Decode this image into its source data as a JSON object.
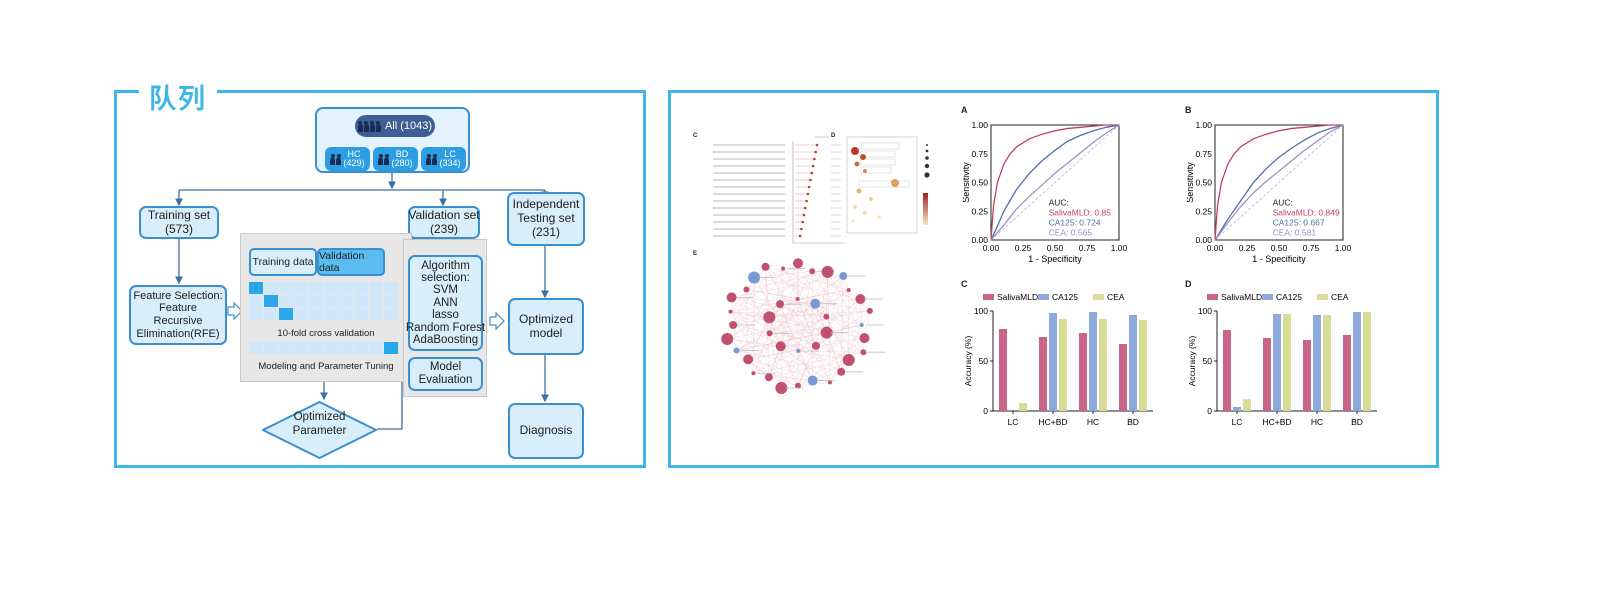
{
  "cohort_panel": {
    "title": "队列",
    "all_label": "All (1043)",
    "groups": [
      {
        "name": "HC",
        "count": "(429)"
      },
      {
        "name": "BD",
        "count": "(280)"
      },
      {
        "name": "LC",
        "count": "(334)"
      }
    ],
    "training_set": "Training set\n(573)",
    "validation_set": "Validation set\n(239)",
    "testing_set": "Independent\nTesting set\n(231)",
    "feature_selection": "Feature Selection:\nFeature\nRecursive\nElimination(RFE)",
    "cv_training": "Training data",
    "cv_validation": "Validation data",
    "cv_label": "10-fold cross validation",
    "cv_caption": "Modeling and Parameter Tuning",
    "algorithm": "Algorithm\nselection:\nSVM\nANN\nlasso\nRandom Forest\nAdaBoosting",
    "model_evaluation": "Model\nEvaluation",
    "optimized_parameter": "Optimized\nParameter",
    "optimized_model": "Optimized\nmodel",
    "diagnosis": "Diagnosis"
  },
  "results_panel": {
    "panel_labels": {
      "roc_a": "A",
      "roc_b": "B",
      "bar_c": "C",
      "bar_d": "D",
      "fig_c": "C",
      "fig_d": "D",
      "fig_e": "E"
    },
    "colors": {
      "salivamld": "#c05a7a",
      "ca125": "#7f9fd6",
      "cea": "#d6d98e",
      "diag": "#b9a6d6"
    }
  },
  "chart_data": [
    {
      "type": "line",
      "panel": "A",
      "xlabel": "1 - Specificity",
      "ylabel": "Sensitivity",
      "xlim": [
        0,
        1
      ],
      "ylim": [
        0,
        1
      ],
      "ticks": [
        "0.00",
        "0.25",
        "0.50",
        "0.75",
        "1.00"
      ],
      "auc_title": "AUC:",
      "series": [
        {
          "name": "SalivaMLD",
          "auc_text": "SalivaMLD: 0.85",
          "color": "#c04060",
          "x": [
            0,
            0.02,
            0.05,
            0.1,
            0.15,
            0.2,
            0.3,
            0.4,
            0.5,
            0.6,
            0.7,
            0.8,
            0.9,
            1.0
          ],
          "y": [
            0,
            0.3,
            0.5,
            0.66,
            0.75,
            0.81,
            0.88,
            0.92,
            0.95,
            0.97,
            0.98,
            0.99,
            1.0,
            1.0
          ]
        },
        {
          "name": "CA125",
          "auc_text": "CA125: 0.724",
          "color": "#4f6ea8",
          "x": [
            0,
            0.05,
            0.1,
            0.2,
            0.3,
            0.4,
            0.5,
            0.6,
            0.7,
            0.8,
            0.9,
            1.0
          ],
          "y": [
            0,
            0.12,
            0.25,
            0.44,
            0.58,
            0.69,
            0.78,
            0.86,
            0.91,
            0.95,
            0.98,
            1.0
          ]
        },
        {
          "name": "CEA",
          "auc_text": "CEA: 0.565",
          "color": "#a08ec8",
          "x": [
            0,
            0.1,
            0.2,
            0.3,
            0.4,
            0.5,
            0.6,
            0.7,
            0.8,
            0.9,
            1.0
          ],
          "y": [
            0,
            0.13,
            0.27,
            0.38,
            0.48,
            0.58,
            0.67,
            0.76,
            0.85,
            0.93,
            1.0
          ]
        }
      ]
    },
    {
      "type": "line",
      "panel": "B",
      "xlabel": "1 - Specificity",
      "ylabel": "Sensitivity",
      "xlim": [
        0,
        1
      ],
      "ylim": [
        0,
        1
      ],
      "ticks": [
        "0.00",
        "0.25",
        "0.50",
        "0.75",
        "1.00"
      ],
      "auc_title": "AUC:",
      "series": [
        {
          "name": "SalivaMLD",
          "auc_text": "SalivaMLD: 0.849",
          "color": "#c04060",
          "x": [
            0,
            0.02,
            0.05,
            0.1,
            0.15,
            0.2,
            0.3,
            0.4,
            0.5,
            0.6,
            0.7,
            0.8,
            0.9,
            1.0
          ],
          "y": [
            0,
            0.3,
            0.5,
            0.66,
            0.75,
            0.81,
            0.88,
            0.92,
            0.95,
            0.97,
            0.98,
            0.99,
            1.0,
            1.0
          ]
        },
        {
          "name": "CA125",
          "auc_text": "CA125: 0.667",
          "color": "#4f6ea8",
          "x": [
            0,
            0.1,
            0.2,
            0.3,
            0.4,
            0.5,
            0.6,
            0.7,
            0.8,
            0.9,
            1.0
          ],
          "y": [
            0,
            0.18,
            0.34,
            0.5,
            0.62,
            0.72,
            0.8,
            0.87,
            0.93,
            0.97,
            1.0
          ]
        },
        {
          "name": "CEA",
          "auc_text": "CEA: 0.581",
          "color": "#a08ec8",
          "x": [
            0,
            0.1,
            0.2,
            0.3,
            0.4,
            0.5,
            0.6,
            0.7,
            0.8,
            0.9,
            1.0
          ],
          "y": [
            0,
            0.15,
            0.29,
            0.41,
            0.51,
            0.6,
            0.69,
            0.78,
            0.86,
            0.94,
            1.0
          ]
        }
      ]
    },
    {
      "type": "bar",
      "panel": "C",
      "ylabel": "Accuracy (%)",
      "ylim": [
        0,
        100
      ],
      "ticks": [
        "0",
        "50",
        "100"
      ],
      "categories": [
        "LC",
        "HC+BD",
        "HC",
        "BD"
      ],
      "series": [
        {
          "name": "SalivaMLD",
          "color": "#c7668a",
          "values": [
            82,
            74,
            78,
            67
          ]
        },
        {
          "name": "CA125",
          "color": "#8eaadd",
          "values": [
            0,
            98,
            99,
            96
          ]
        },
        {
          "name": "CEA",
          "color": "#d8dc97",
          "values": [
            8,
            92,
            92,
            91
          ]
        }
      ]
    },
    {
      "type": "bar",
      "panel": "D",
      "ylabel": "Accuracy (%)",
      "ylim": [
        0,
        100
      ],
      "ticks": [
        "0",
        "50",
        "100"
      ],
      "categories": [
        "LC",
        "HC+BD",
        "HC",
        "BD"
      ],
      "series": [
        {
          "name": "SalivaMLD",
          "color": "#c7668a",
          "values": [
            81,
            73,
            71,
            76
          ]
        },
        {
          "name": "CA125",
          "color": "#8eaadd",
          "values": [
            4,
            97,
            96,
            99
          ]
        },
        {
          "name": "CEA",
          "color": "#d8dc97",
          "values": [
            12,
            97,
            96,
            99
          ]
        }
      ]
    }
  ]
}
